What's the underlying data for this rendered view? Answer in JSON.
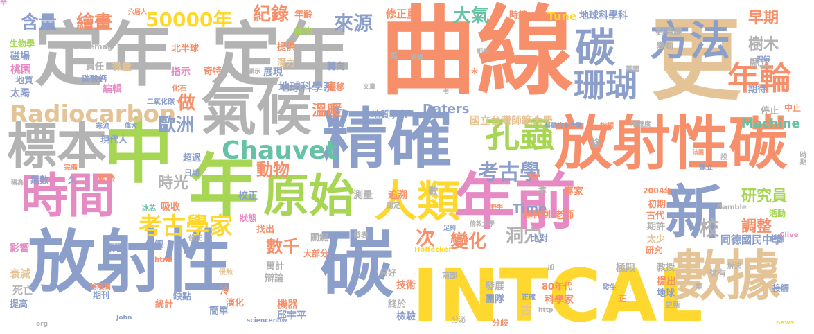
{
  "palette": {
    "blue": "#8c9fcb",
    "orange": "#f78f6a",
    "green": "#a6d653",
    "pink": "#e68ac3",
    "yellow": "#fed82e",
    "tan": "#e4c496",
    "gray": "#b3b3b3",
    "teal": "#65c2a5"
  },
  "words": [
    {
      "text": "曲線",
      "color": "orange"
    },
    {
      "text": "更",
      "color": "tan"
    },
    {
      "text": "定年",
      "color": "gray"
    },
    {
      "text": "定年",
      "color": "gray"
    },
    {
      "text": "方法",
      "color": "blue"
    },
    {
      "text": "碳",
      "color": "blue"
    },
    {
      "text": "氣候",
      "color": "gray"
    },
    {
      "text": "精確",
      "color": "blue"
    },
    {
      "text": "中",
      "color": "green"
    },
    {
      "text": "年",
      "color": "green"
    },
    {
      "text": "放射性碳",
      "color": "orange"
    },
    {
      "text": "年前",
      "color": "pink"
    },
    {
      "text": "新",
      "color": "blue"
    },
    {
      "text": "放射性",
      "color": "blue"
    },
    {
      "text": "碳",
      "color": "blue"
    },
    {
      "text": "INTCAL",
      "color": "yellow"
    },
    {
      "text": "數據",
      "color": "tan"
    },
    {
      "text": "時間",
      "color": "pink"
    },
    {
      "text": "人類",
      "color": "yellow"
    },
    {
      "text": "原始",
      "color": "green"
    },
    {
      "text": "標本",
      "color": "gray"
    },
    {
      "text": "孔蟲",
      "color": "green"
    },
    {
      "text": "珊瑚",
      "color": "blue"
    },
    {
      "text": "年輪",
      "color": "orange"
    },
    {
      "text": "Radiocarbon",
      "color": "tan"
    },
    {
      "text": "Chauvet",
      "color": "teal"
    },
    {
      "text": "考古學家",
      "color": "yellow"
    },
    {
      "text": "考古學",
      "color": "blue"
    },
    {
      "text": "50000年",
      "color": "yellow"
    },
    {
      "text": "紀錄",
      "color": "orange"
    },
    {
      "text": "來源",
      "color": "blue"
    },
    {
      "text": "大氣",
      "color": "teal"
    },
    {
      "text": "繪畫",
      "color": "orange"
    },
    {
      "text": "含量",
      "color": "blue"
    },
    {
      "text": "歐洲",
      "color": "blue"
    },
    {
      "text": "做",
      "color": "orange"
    },
    {
      "text": "動物",
      "color": "orange"
    },
    {
      "text": "時光",
      "color": "gray"
    },
    {
      "text": "數千",
      "color": "orange"
    },
    {
      "text": "變化",
      "color": "orange"
    },
    {
      "text": "洞穴",
      "color": "gray"
    },
    {
      "text": "次",
      "color": "orange"
    },
    {
      "text": "研究員",
      "color": "green"
    },
    {
      "text": "調整",
      "color": "orange"
    },
    {
      "text": "校",
      "color": "gray"
    },
    {
      "text": "樹木",
      "color": "gray"
    },
    {
      "text": "早期",
      "color": "orange"
    },
    {
      "text": "溫暖",
      "color": "orange"
    },
    {
      "text": "Machine",
      "color": "teal"
    },
    {
      "text": "Daters",
      "color": "blue"
    },
    {
      "text": "Time",
      "color": "blue"
    },
    {
      "text": "Tune",
      "color": "yellow"
    },
    {
      "text": "地球科學科",
      "color": "blue"
    },
    {
      "text": "地球科學系",
      "color": "blue"
    },
    {
      "text": "國立台灣師範大學",
      "color": "tan"
    },
    {
      "text": "同德國民中學",
      "color": "blue"
    },
    {
      "text": "縣立",
      "color": "gray"
    },
    {
      "text": "期待",
      "color": "blue"
    },
    {
      "text": "劉德慶",
      "color": "gray"
    },
    {
      "text": "修正量",
      "color": "orange"
    },
    {
      "text": "年齡",
      "color": "orange"
    },
    {
      "text": "植物",
      "color": "green"
    },
    {
      "text": "提供",
      "color": "orange"
    },
    {
      "text": "北半球",
      "color": "orange"
    },
    {
      "text": "潛力",
      "color": "tan"
    },
    {
      "text": "展現",
      "color": "blue"
    },
    {
      "text": "指示",
      "color": "pink"
    },
    {
      "text": "奇特",
      "color": "orange"
    },
    {
      "text": "責任",
      "color": "gray"
    },
    {
      "text": "微量",
      "color": "tan"
    },
    {
      "text": "碳酸鈣",
      "color": "blue"
    },
    {
      "text": "編輯",
      "color": "pink"
    },
    {
      "text": "地質",
      "color": "blue"
    },
    {
      "text": "太陽",
      "color": "blue"
    },
    {
      "text": "桃園",
      "color": "pink"
    },
    {
      "text": "磁場",
      "color": "blue"
    },
    {
      "text": "生物學",
      "color": "green"
    },
    {
      "text": "sciencemag",
      "color": "gray"
    },
    {
      "text": "化石",
      "color": "orange"
    },
    {
      "text": "二氧化碳",
      "color": "blue"
    },
    {
      "text": "地質學家",
      "color": "blue"
    },
    {
      "text": "遷移",
      "color": "orange"
    },
    {
      "text": "轉向",
      "color": "blue"
    },
    {
      "text": "時鐘",
      "color": "orange"
    },
    {
      "text": "變動",
      "color": "gray"
    },
    {
      "text": "理解",
      "color": "blue"
    },
    {
      "text": "英國",
      "color": "gray"
    },
    {
      "text": "停止",
      "color": "gray"
    },
    {
      "text": "科羅拉多大學",
      "color": "blue"
    },
    {
      "text": "指標",
      "color": "orange"
    },
    {
      "text": "精確度",
      "color": "gray"
    },
    {
      "text": "條",
      "color": "gray"
    },
    {
      "text": "中止",
      "color": "orange"
    },
    {
      "text": "超過",
      "color": "blue"
    },
    {
      "text": "日期",
      "color": "blue"
    },
    {
      "text": "無數",
      "color": "blue"
    },
    {
      "text": "久",
      "color": "blue"
    },
    {
      "text": "國際",
      "color": "orange"
    },
    {
      "text": "吸收",
      "color": "orange"
    },
    {
      "text": "校正",
      "color": "blue"
    },
    {
      "text": "狀態",
      "color": "pink"
    },
    {
      "text": "找出",
      "color": "orange"
    },
    {
      "text": "測量",
      "color": "gray"
    },
    {
      "text": "追溯",
      "color": "orange"
    },
    {
      "text": "數",
      "color": "gray"
    },
    {
      "text": "準",
      "color": "gray"
    },
    {
      "text": "專家",
      "color": "orange"
    },
    {
      "text": "2004年",
      "color": "orange"
    },
    {
      "text": "初期",
      "color": "orange"
    },
    {
      "text": "古代",
      "color": "orange"
    },
    {
      "text": "期許",
      "color": "gray"
    },
    {
      "text": "老師",
      "color": "orange"
    },
    {
      "text": "延伸到",
      "color": "orange"
    },
    {
      "text": "比對",
      "color": "blue"
    },
    {
      "text": "太少",
      "color": "tan"
    },
    {
      "text": "研究",
      "color": "orange"
    },
    {
      "text": "活動",
      "color": "green"
    },
    {
      "text": "中碳",
      "color": "blue"
    },
    {
      "text": "影響",
      "color": "pink"
    },
    {
      "text": "原理",
      "color": "blue"
    },
    {
      "text": "組織",
      "color": "blue"
    },
    {
      "text": "萬計",
      "color": "gray"
    },
    {
      "text": "辯論",
      "color": "gray"
    },
    {
      "text": "大部分",
      "color": "orange"
    },
    {
      "text": "只好",
      "color": "gray"
    },
    {
      "text": "關鍵",
      "color": "gray"
    },
    {
      "text": "發表",
      "color": "gray"
    },
    {
      "text": "衰減",
      "color": "tan"
    },
    {
      "text": "死亡",
      "color": "gray"
    },
    {
      "text": "提高",
      "color": "blue"
    },
    {
      "text": "期刊",
      "color": "blue"
    },
    {
      "text": "統計",
      "color": "orange"
    },
    {
      "text": "缺點",
      "color": "blue"
    },
    {
      "text": "簡單",
      "color": "blue"
    },
    {
      "text": "冷",
      "color": "orange"
    },
    {
      "text": "演化",
      "color": "orange"
    },
    {
      "text": "機器",
      "color": "orange"
    },
    {
      "text": "邱宇平",
      "color": "blue"
    },
    {
      "text": "技術",
      "color": "orange"
    },
    {
      "text": "終於",
      "color": "gray"
    },
    {
      "text": "檢驗",
      "color": "blue"
    },
    {
      "text": "科學家",
      "color": "orange"
    },
    {
      "text": "80年代",
      "color": "orange"
    },
    {
      "text": "古",
      "color": "tan"
    },
    {
      "text": "發展",
      "color": "gray"
    },
    {
      "text": "團隊",
      "color": "blue"
    },
    {
      "text": "分泌",
      "color": "gray"
    },
    {
      "text": "正確",
      "color": "blue"
    },
    {
      "text": "分歧",
      "color": "orange"
    },
    {
      "text": "極限",
      "color": "gray"
    },
    {
      "text": "教授",
      "color": "gray"
    },
    {
      "text": "提出",
      "color": "orange"
    },
    {
      "text": "地球",
      "color": "blue"
    },
    {
      "text": "更新",
      "color": "gray"
    },
    {
      "text": "從有",
      "color": "gray"
    },
    {
      "text": "解決",
      "color": "gray"
    },
    {
      "text": "接觸",
      "color": "blue"
    },
    {
      "text": "正",
      "color": "orange"
    },
    {
      "text": "加",
      "color": "gray"
    },
    {
      "text": "Gamble",
      "color": "gray"
    },
    {
      "text": "Clive",
      "color": "pink"
    },
    {
      "text": "org",
      "color": "gray"
    },
    {
      "text": "news",
      "color": "yellow"
    },
    {
      "text": "sciencenow",
      "color": "blue"
    },
    {
      "text": "Hoffecker",
      "color": "yellow"
    },
    {
      "text": "http",
      "color": "gray"
    },
    {
      "text": "html",
      "color": "orange"
    },
    {
      "text": "John",
      "color": "blue"
    },
    {
      "text": "格陵蘭",
      "color": "orange"
    },
    {
      "text": "南部",
      "color": "gray"
    },
    {
      "text": "寒流",
      "color": "blue"
    },
    {
      "text": "偉大",
      "color": "blue"
    },
    {
      "text": "現代人",
      "color": "blue"
    },
    {
      "text": "完備",
      "color": "orange"
    },
    {
      "text": "稱為",
      "color": "gray"
    },
    {
      "text": "冰芯",
      "color": "teal"
    },
    {
      "text": "修正",
      "color": "gray"
    },
    {
      "text": "侵蝕",
      "color": "tan"
    },
    {
      "text": "認定",
      "color": "gray"
    },
    {
      "text": "野牛",
      "color": "orange"
    },
    {
      "text": "獅子",
      "color": "orange"
    },
    {
      "text": "倫敦大學",
      "color": "gray"
    },
    {
      "text": "足夠",
      "color": "blue"
    },
    {
      "text": "文章",
      "color": "gray"
    },
    {
      "text": "壁畫",
      "color": "gray"
    },
    {
      "text": "馬",
      "color": "gray"
    },
    {
      "text": "老",
      "color": "gray"
    },
    {
      "text": "未",
      "color": "orange"
    },
    {
      "text": "細胞",
      "color": "gray"
    },
    {
      "text": "顯示",
      "color": "gray"
    },
    {
      "text": "穴居人",
      "color": "orange"
    },
    {
      "text": "時期",
      "color": "gray"
    },
    {
      "text": "設",
      "color": "gray"
    },
    {
      "text": "法國",
      "color": "orange"
    },
    {
      "text": "建立",
      "color": "blue"
    },
    {
      "text": "發生",
      "color": "blue"
    },
    {
      "text": "單",
      "color": "gray"
    },
    {
      "text": "辛",
      "color": "pink"
    }
  ]
}
